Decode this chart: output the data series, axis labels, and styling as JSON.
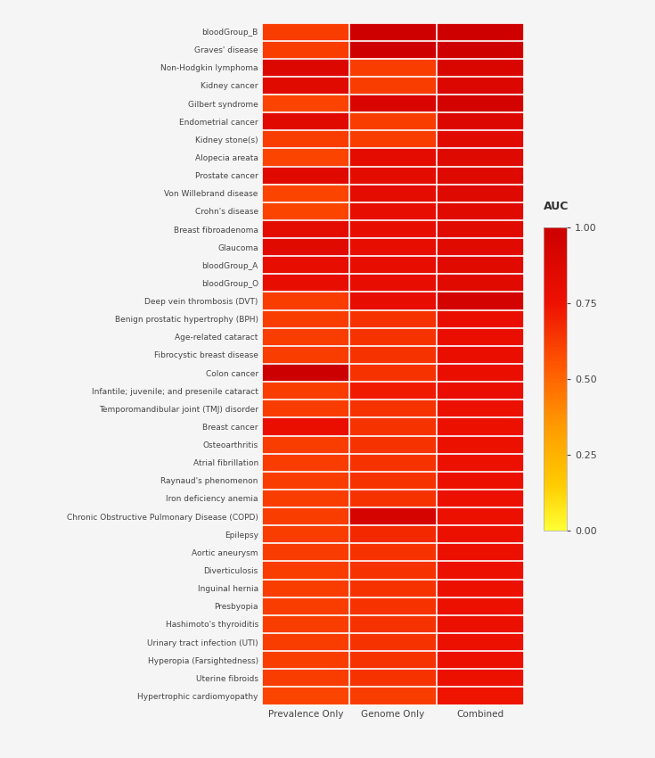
{
  "diseases": [
    "bloodGroup_B",
    "Graves' disease",
    "Non-Hodgkin lymphoma",
    "Kidney cancer",
    "Gilbert syndrome",
    "Endometrial cancer",
    "Kidney stone(s)",
    "Alopecia areata",
    "Prostate cancer",
    "Von Willebrand disease",
    "Crohn's disease",
    "Breast fibroadenoma",
    "Glaucoma",
    "bloodGroup_A",
    "bloodGroup_O",
    "Deep vein thrombosis (DVT)",
    "Benign prostatic hypertrophy (BPH)",
    "Age-related cataract",
    "Fibrocystic breast disease",
    "Colon cancer",
    "Infantile; juvenile; and presenile cataract",
    "Temporomandibular joint (TMJ) disorder",
    "Breast cancer",
    "Osteoarthritis",
    "Atrial fibrillation",
    "Raynaud's phenomenon",
    "Iron deficiency anemia",
    "Chronic Obstructive Pulmonary Disease (COPD)",
    "Epilepsy",
    "Aortic aneurysm",
    "Diverticulosis",
    "Inguinal hernia",
    "Presbyopia",
    "Hashimoto's thyroiditis",
    "Urinary tract infection (UTI)",
    "Hyperopia (Farsightedness)",
    "Uterine fibroids",
    "Hypertrophic cardiomyopathy"
  ],
  "columns": [
    "Prevalence Only",
    "Genome Only",
    "Combined"
  ],
  "values": [
    [
      0.62,
      0.97,
      0.97
    ],
    [
      0.62,
      0.97,
      0.98
    ],
    [
      0.88,
      0.62,
      0.9
    ],
    [
      0.85,
      0.62,
      0.88
    ],
    [
      0.6,
      0.9,
      0.95
    ],
    [
      0.85,
      0.62,
      0.88
    ],
    [
      0.62,
      0.62,
      0.84
    ],
    [
      0.6,
      0.82,
      0.86
    ],
    [
      0.85,
      0.82,
      0.86
    ],
    [
      0.6,
      0.82,
      0.86
    ],
    [
      0.6,
      0.8,
      0.85
    ],
    [
      0.82,
      0.8,
      0.85
    ],
    [
      0.85,
      0.8,
      0.85
    ],
    [
      0.8,
      0.8,
      0.85
    ],
    [
      0.8,
      0.8,
      0.85
    ],
    [
      0.62,
      0.8,
      0.95
    ],
    [
      0.62,
      0.65,
      0.78
    ],
    [
      0.62,
      0.65,
      0.78
    ],
    [
      0.62,
      0.65,
      0.78
    ],
    [
      1.0,
      0.65,
      0.78
    ],
    [
      0.62,
      0.72,
      0.78
    ],
    [
      0.62,
      0.65,
      0.76
    ],
    [
      0.78,
      0.65,
      0.76
    ],
    [
      0.62,
      0.65,
      0.76
    ],
    [
      0.62,
      0.65,
      0.76
    ],
    [
      0.62,
      0.65,
      0.76
    ],
    [
      0.62,
      0.65,
      0.76
    ],
    [
      0.62,
      0.93,
      0.76
    ],
    [
      0.62,
      0.68,
      0.76
    ],
    [
      0.62,
      0.65,
      0.76
    ],
    [
      0.62,
      0.65,
      0.76
    ],
    [
      0.62,
      0.65,
      0.76
    ],
    [
      0.62,
      0.65,
      0.76
    ],
    [
      0.62,
      0.65,
      0.76
    ],
    [
      0.62,
      0.65,
      0.76
    ],
    [
      0.62,
      0.65,
      0.76
    ],
    [
      0.62,
      0.65,
      0.76
    ],
    [
      0.6,
      0.62,
      0.74
    ]
  ],
  "vmin": 0.0,
  "vmax": 1.0,
  "colorbar_ticks": [
    0.0,
    0.25,
    0.5,
    0.75,
    1.0
  ],
  "colorbar_ticklabels": [
    "0.00",
    "0.25",
    "0.50",
    "0.75",
    "1.00"
  ],
  "colorbar_label": "AUC",
  "fig_bgcolor": "#f5f5f5"
}
